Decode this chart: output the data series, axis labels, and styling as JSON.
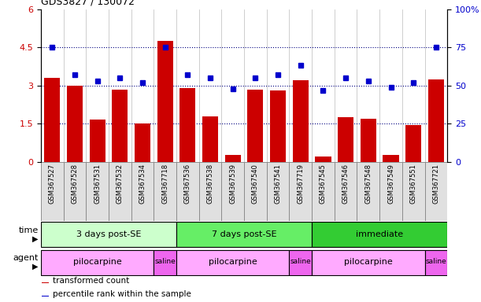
{
  "title": "GDS3827 / 130072",
  "samples": [
    "GSM367527",
    "GSM367528",
    "GSM367531",
    "GSM367532",
    "GSM367534",
    "GSM367718",
    "GSM367536",
    "GSM367538",
    "GSM367539",
    "GSM367540",
    "GSM367541",
    "GSM367719",
    "GSM367545",
    "GSM367546",
    "GSM367548",
    "GSM367549",
    "GSM367551",
    "GSM367721"
  ],
  "bar_values": [
    3.3,
    3.0,
    1.65,
    2.85,
    1.5,
    4.75,
    2.9,
    1.8,
    0.28,
    2.85,
    2.82,
    3.2,
    0.22,
    1.75,
    1.68,
    0.28,
    1.45,
    3.25
  ],
  "dot_values": [
    75,
    57,
    53,
    55,
    52,
    75,
    57,
    55,
    48,
    55,
    57,
    63,
    47,
    55,
    53,
    49,
    52,
    75
  ],
  "bar_color": "#cc0000",
  "dot_color": "#0000cc",
  "ylim_left": [
    0,
    6
  ],
  "ylim_right": [
    0,
    100
  ],
  "yticks_left": [
    0,
    1.5,
    3.0,
    4.5,
    6.0
  ],
  "yticks_right": [
    0,
    25,
    50,
    75,
    100
  ],
  "ytick_labels_left": [
    "0",
    "1.5",
    "3",
    "4.5",
    "6"
  ],
  "ytick_labels_right": [
    "0",
    "25",
    "50",
    "75",
    "100%"
  ],
  "hlines": [
    1.5,
    3.0,
    4.5
  ],
  "time_groups": [
    {
      "label": "3 days post-SE",
      "start": 0,
      "end": 5,
      "color": "#ccffcc"
    },
    {
      "label": "7 days post-SE",
      "start": 6,
      "end": 11,
      "color": "#66ee66"
    },
    {
      "label": "immediate",
      "start": 12,
      "end": 17,
      "color": "#33cc33"
    }
  ],
  "agent_groups": [
    {
      "label": "pilocarpine",
      "start": 0,
      "end": 4,
      "color": "#ffaaff"
    },
    {
      "label": "saline",
      "start": 5,
      "end": 5,
      "color": "#ee66ee"
    },
    {
      "label": "pilocarpine",
      "start": 6,
      "end": 10,
      "color": "#ffaaff"
    },
    {
      "label": "saline",
      "start": 11,
      "end": 11,
      "color": "#ee66ee"
    },
    {
      "label": "pilocarpine",
      "start": 12,
      "end": 16,
      "color": "#ffaaff"
    },
    {
      "label": "saline",
      "start": 17,
      "end": 17,
      "color": "#ee66ee"
    }
  ],
  "legend_items": [
    {
      "label": "transformed count",
      "color": "#cc0000"
    },
    {
      "label": "percentile rank within the sample",
      "color": "#0000cc"
    }
  ],
  "time_label": "time",
  "agent_label": "agent"
}
